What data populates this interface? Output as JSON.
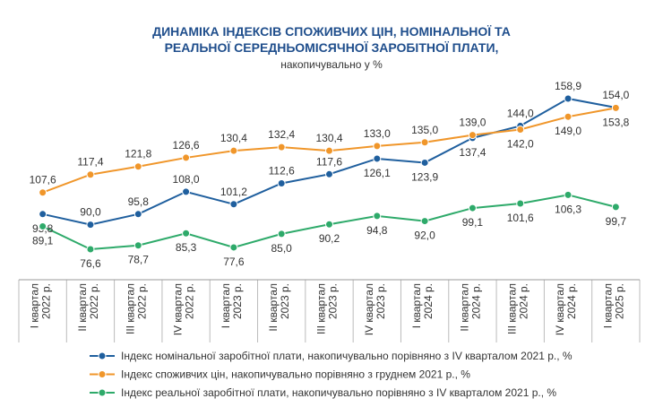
{
  "chart_data": {
    "type": "line",
    "title": [
      "ДИНАМІКА ІНДЕКСІВ СПОЖИВЧИХ ЦІН, НОМІНАЛЬНОЇ ТА",
      "РЕАЛЬНОЇ СЕРЕДНЬОМІСЯЧНОЇ ЗАРОБІТНОЇ ПЛАТИ,"
    ],
    "subtitle": "накопичувально у %",
    "categories": [
      "I квартал 2022 р.",
      "II квартал 2022 р.",
      "III квартал 2022 р.",
      "IV квартал 2022 р.",
      "I квартал 2023 р.",
      "II квартал 2023 р.",
      "III квартал 2023 р.",
      "IV квартал 2023 р.",
      "I квартал 2024 р.",
      "II квартал 2024 р.",
      "III квартал 2024 р.",
      "IV квартал 2024 р.",
      "I квартал 2025 р."
    ],
    "series": [
      {
        "name": "Індекс номінальної заробітної плати, накопичувально порівняно з IV кварталом 2021 р., %",
        "color": "#1f5f9e",
        "values": [
          95.8,
          90.0,
          95.8,
          108.0,
          101.2,
          112.6,
          117.6,
          126.1,
          123.9,
          137.4,
          144.0,
          158.9,
          154.0
        ],
        "value_labels": [
          "95,8",
          "90,0",
          "95,8",
          "108,0",
          "101,2",
          "112,6",
          "117,6",
          "126,1",
          "123,9",
          "137,4",
          "144,0",
          "158,9",
          "154,0"
        ]
      },
      {
        "name": "Індекс споживчих цін, накопичувально порівняно з груднем 2021 р., %",
        "color": "#f0962a",
        "values": [
          107.6,
          117.4,
          121.8,
          126.6,
          130.4,
          132.4,
          130.4,
          133.0,
          135.0,
          139.0,
          142.0,
          149.0,
          153.8
        ],
        "value_labels": [
          "107,6",
          "117,4",
          "121,8",
          "126,6",
          "130,4",
          "132,4",
          "130,4",
          "133,0",
          "135,0",
          "139,0",
          "142,0",
          "149,0",
          "153,8"
        ]
      },
      {
        "name": "Індекс реальної заробітної плати, накопичувально порівняно з IV кварталом 2021 р., %",
        "color": "#2eaa6a",
        "values": [
          89.1,
          76.6,
          78.7,
          85.3,
          77.6,
          85.0,
          90.2,
          94.8,
          92.0,
          99.1,
          101.6,
          106.3,
          99.7
        ],
        "value_labels": [
          "89,1",
          "76,6",
          "78,7",
          "85,3",
          "77,6",
          "85,0",
          "90,2",
          "94,8",
          "92,0",
          "99,1",
          "101,6",
          "106,3",
          "99,7"
        ]
      }
    ]
  }
}
